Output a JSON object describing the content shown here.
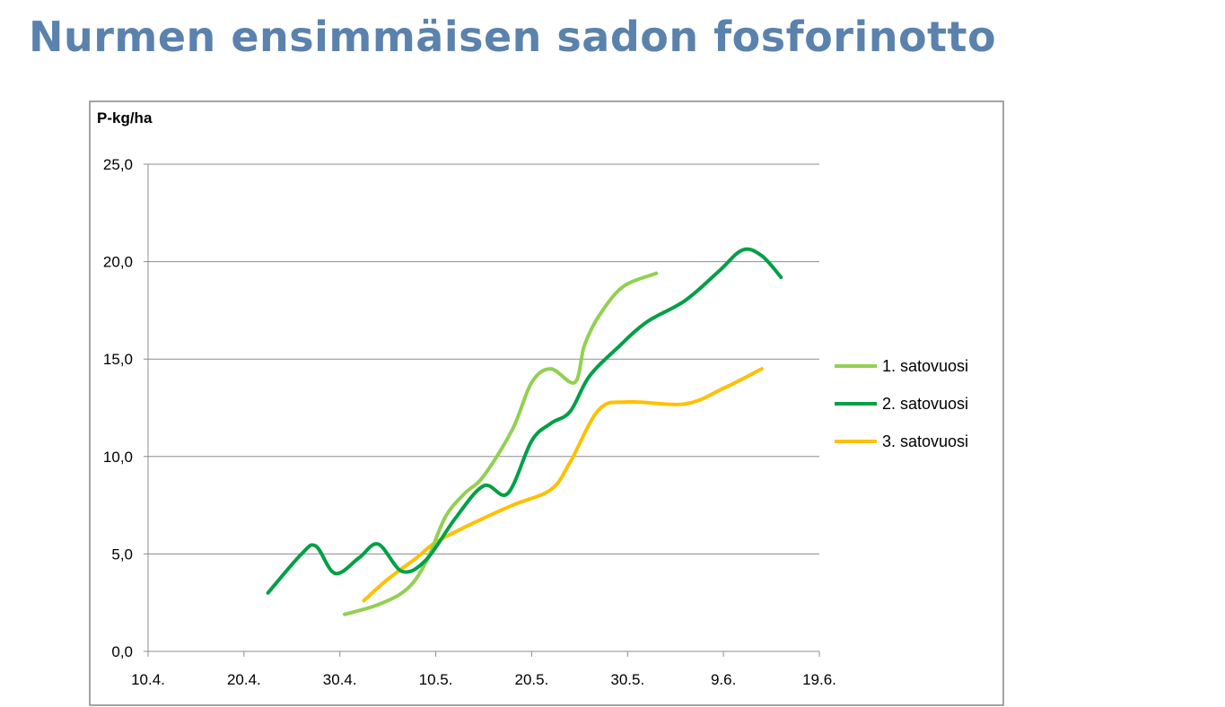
{
  "title": "Nurmen ensimmäisen sadon fosforinotto",
  "chart_data": {
    "type": "line",
    "ylabel": "P-kg/ha",
    "ylim": [
      0,
      25
    ],
    "yticks": [
      "0,0",
      "5,0",
      "10,0",
      "15,0",
      "20,0",
      "25,0"
    ],
    "xlim": [
      0,
      70
    ],
    "xticks": [
      "10.4.",
      "20.4.",
      "30.4.",
      "10.5.",
      "20.5.",
      "30.5.",
      "9.6.",
      "19.6."
    ],
    "grid": true,
    "legend_position": "right",
    "series": [
      {
        "name": "1. satovuosi",
        "color": "#92d050",
        "points": [
          [
            20.5,
            1.9
          ],
          [
            24,
            2.4
          ],
          [
            27,
            3.2
          ],
          [
            29,
            4.6
          ],
          [
            31,
            6.9
          ],
          [
            33,
            8.1
          ],
          [
            35,
            9.0
          ],
          [
            38,
            11.4
          ],
          [
            40,
            13.8
          ],
          [
            42,
            14.5
          ],
          [
            44.5,
            13.8
          ],
          [
            45.5,
            15.7
          ],
          [
            47,
            17.2
          ],
          [
            49.5,
            18.7
          ],
          [
            53,
            19.4
          ]
        ]
      },
      {
        "name": "2. satovuosi",
        "color": "#00a046",
        "points": [
          [
            12.5,
            3.0
          ],
          [
            16,
            5.0
          ],
          [
            17.5,
            5.4
          ],
          [
            19.5,
            4.0
          ],
          [
            22,
            4.8
          ],
          [
            24,
            5.5
          ],
          [
            26.5,
            4.1
          ],
          [
            29,
            4.7
          ],
          [
            32,
            6.8
          ],
          [
            35,
            8.5
          ],
          [
            37.5,
            8.1
          ],
          [
            40,
            10.8
          ],
          [
            42,
            11.7
          ],
          [
            44,
            12.3
          ],
          [
            46,
            14.1
          ],
          [
            49,
            15.6
          ],
          [
            52,
            16.9
          ],
          [
            56,
            18.0
          ],
          [
            59.5,
            19.5
          ],
          [
            62,
            20.6
          ],
          [
            64,
            20.3
          ],
          [
            66,
            19.2
          ]
        ]
      },
      {
        "name": "3. satovuosi",
        "color": "#ffc000",
        "points": [
          [
            22.5,
            2.6
          ],
          [
            25,
            3.7
          ],
          [
            28,
            4.8
          ],
          [
            30,
            5.6
          ],
          [
            34,
            6.6
          ],
          [
            38,
            7.5
          ],
          [
            42,
            8.3
          ],
          [
            44,
            9.7
          ],
          [
            47,
            12.4
          ],
          [
            50,
            12.8
          ],
          [
            56,
            12.7
          ],
          [
            60,
            13.5
          ],
          [
            64,
            14.5
          ]
        ]
      }
    ]
  }
}
